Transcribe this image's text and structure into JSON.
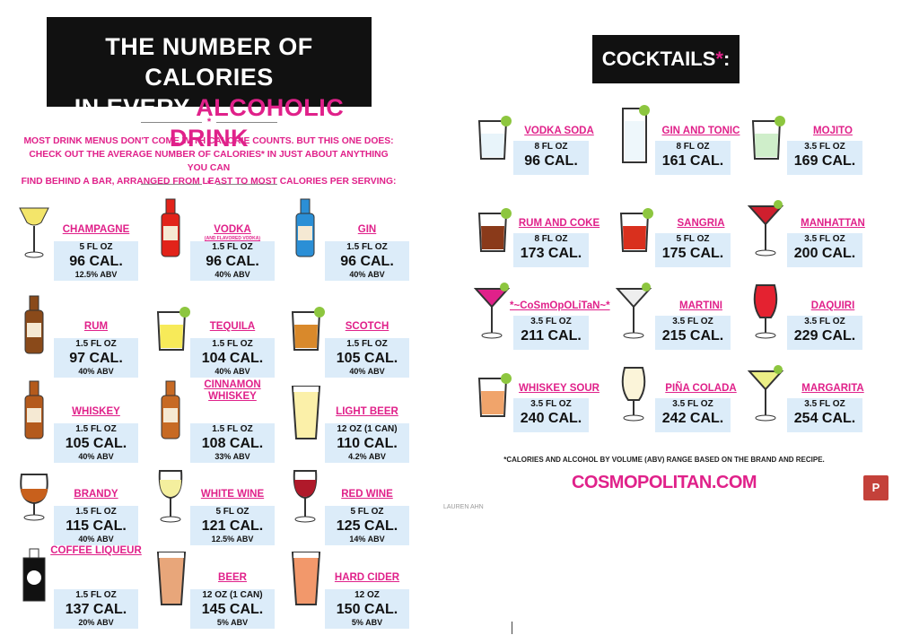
{
  "title": {
    "line1": "THE NUMBER OF CALORIES",
    "line2_white": "IN EVERY",
    "line2_pink": "ALCOHOLIC DRINK"
  },
  "intro": [
    "MOST DRINK MENUS DON'T COME WITH CALORIE COUNTS. BUT THIS ONE DOES:",
    "CHECK OUT THE AVERAGE NUMBER OF CALORIES* IN JUST ABOUT ANYTHING YOU CAN",
    "FIND BEHIND A BAR, ARRANGED FROM LEAST TO MOST CALORIES PER SERVING:"
  ],
  "divider_star": "*",
  "drinks": [
    {
      "name": "CHAMPAGNE",
      "serving": "5 FL OZ",
      "calories": "96 CAL.",
      "abv": "12.5% ABV"
    },
    {
      "name": "VODKA",
      "subname": "(AND FLAVORED VODKA)",
      "serving": "1.5 FL OZ",
      "calories": "96 CAL.",
      "abv": "40% ABV"
    },
    {
      "name": "GIN",
      "serving": "1.5 FL OZ",
      "calories": "96 CAL.",
      "abv": "40% ABV"
    },
    {
      "name": "RUM",
      "serving": "1.5 FL OZ",
      "calories": "97 CAL.",
      "abv": "40% ABV"
    },
    {
      "name": "TEQUILA",
      "serving": "1.5 FL OZ",
      "calories": "104 CAL.",
      "abv": "40% ABV"
    },
    {
      "name": "SCOTCH",
      "serving": "1.5 FL OZ",
      "calories": "105 CAL.",
      "abv": "40% ABV"
    },
    {
      "name": "WHISKEY",
      "serving": "1.5 FL OZ",
      "calories": "105 CAL.",
      "abv": "40% ABV"
    },
    {
      "name": "CINNAMON WHISKEY",
      "serving": "1.5 FL OZ",
      "calories": "108 CAL.",
      "abv": "33% ABV"
    },
    {
      "name": "LIGHT BEER",
      "serving": "12 OZ (1 CAN)",
      "calories": "110 CAL.",
      "abv": "4.2% ABV"
    },
    {
      "name": "BRANDY",
      "serving": "1.5 FL OZ",
      "calories": "115 CAL.",
      "abv": "40% ABV"
    },
    {
      "name": "WHITE WINE",
      "serving": "5 FL OZ",
      "calories": "121 CAL.",
      "abv": "12.5% ABV"
    },
    {
      "name": "RED WINE",
      "serving": "5 FL OZ",
      "calories": "125 CAL.",
      "abv": "14% ABV"
    },
    {
      "name": "COFFEE LIQUEUR",
      "serving": "1.5 FL OZ",
      "calories": "137 CAL.",
      "abv": "20% ABV"
    },
    {
      "name": "BEER",
      "serving": "12 OZ (1 CAN)",
      "calories": "145 CAL.",
      "abv": "5% ABV"
    },
    {
      "name": "HARD CIDER",
      "serving": "12 OZ",
      "calories": "150 CAL.",
      "abv": "5% ABV"
    }
  ],
  "cocktails_title": {
    "word": "COCKTAILS",
    "star": "*",
    "colon": ":"
  },
  "cocktails": [
    {
      "name": "VODKA SODA",
      "serving": "8 FL OZ",
      "calories": "96 CAL."
    },
    {
      "name": "GIN AND TONIC",
      "serving": "8 FL OZ",
      "calories": "161 CAL."
    },
    {
      "name": "MOJITO",
      "serving": "3.5 FL OZ",
      "calories": "169 CAL."
    },
    {
      "name": "RUM AND COKE",
      "serving": "8 FL OZ",
      "calories": "173 CAL."
    },
    {
      "name": "SANGRIA",
      "serving": "5 FL OZ",
      "calories": "175 CAL."
    },
    {
      "name": "MANHATTAN",
      "serving": "3.5 FL OZ",
      "calories": "200 CAL."
    },
    {
      "name": "*~CoSmOpOLiTaN~*",
      "serving": "3.5 FL OZ",
      "calories": "211 CAL."
    },
    {
      "name": "MARTINI",
      "serving": "3.5 FL OZ",
      "calories": "215 CAL."
    },
    {
      "name": "DAQUIRI",
      "serving": "3.5 FL OZ",
      "calories": "229 CAL."
    },
    {
      "name": "WHISKEY SOUR",
      "serving": "3.5 FL OZ",
      "calories": "240 CAL."
    },
    {
      "name": "PIÑA COLADA",
      "serving": "3.5 FL OZ",
      "calories": "242 CAL."
    },
    {
      "name": "MARGARITA",
      "serving": "3.5 FL OZ",
      "calories": "254 CAL."
    }
  ],
  "footnote": "*CALORIES AND ALCOHOL BY VOLUME (ABV) RANGE BASED ON THE BRAND AND RECIPE.",
  "brand": "COSMOPOLITAN.COM",
  "credit": "LAUREN AHN",
  "pin_button": "P"
}
